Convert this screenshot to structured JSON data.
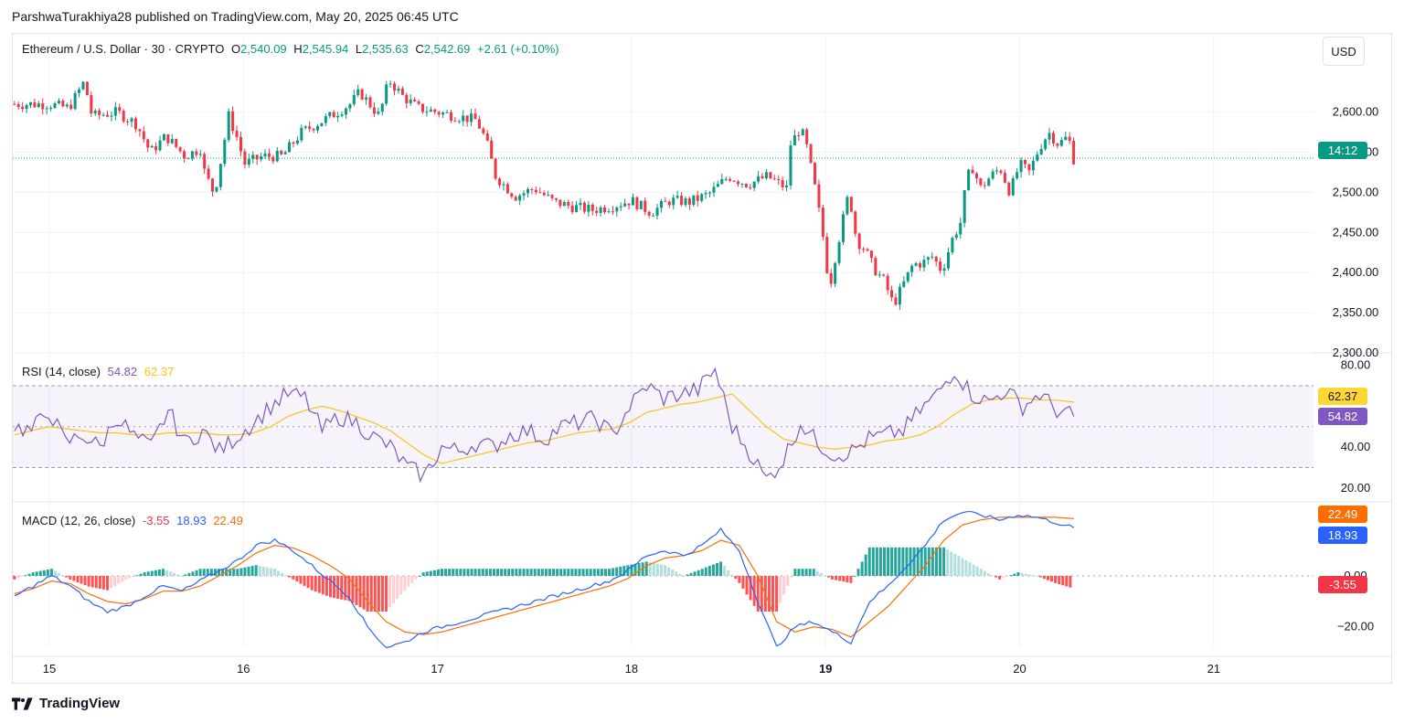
{
  "header": {
    "attribution": "ParshwaTurakhiya28 published on TradingView.com, May 20, 2025 06:45 UTC"
  },
  "legend": {
    "symbol": "Ethereum / U.S. Dollar · 30 · CRYPTO",
    "open_label": "O",
    "open": "2,540.09",
    "high_label": "H",
    "high": "2,545.94",
    "low_label": "L",
    "low": "2,535.63",
    "close_label": "C",
    "close": "2,542.69",
    "change": "+2.61 (+0.10%)",
    "rsi_title": "RSI (14, close)",
    "rsi_value": "54.82",
    "rsi_ma_value": "62.37",
    "macd_title": "MACD (12, 26, close)",
    "macd_hist_value": "-3.55",
    "macd_value": "18.93",
    "macd_signal_value": "22.49"
  },
  "currency": "USD",
  "badges": {
    "countdown": "14:12",
    "rsi_ma": "62.37",
    "rsi": "54.82",
    "macd_signal": "22.49",
    "macd": "18.93",
    "macd_hist": "-3.55"
  },
  "footer": {
    "brand": "TradingView"
  },
  "colors": {
    "up": "#089981",
    "down": "#f23645",
    "rsi": "#7e57c2",
    "rsi_ma": "#fdd835",
    "macd": "#2962ff",
    "signal": "#ff6d00",
    "grid": "#f0f3fa"
  },
  "chart_data": [
    {
      "type": "candlestick",
      "title": "Ethereum / U.S. Dollar · 30 · CRYPTO",
      "x_ticks": [
        "15",
        "16",
        "17",
        "18",
        "19",
        "20",
        "21"
      ],
      "y_ticks": [
        "2,600.00",
        "2,550.00",
        "2,500.00",
        "2,450.00",
        "2,400.00",
        "2,350.00",
        "2,300.00"
      ],
      "ylim": [
        2300,
        2660
      ],
      "last_price": 2542.69,
      "ohlc_path": [
        [
          0.0,
          2610
        ],
        [
          0.1,
          2605
        ],
        [
          0.18,
          2638
        ],
        [
          0.22,
          2595
        ],
        [
          0.35,
          2600
        ],
        [
          0.45,
          2585
        ],
        [
          0.52,
          2550
        ],
        [
          0.6,
          2570
        ],
        [
          0.7,
          2545
        ],
        [
          0.78,
          2555
        ],
        [
          0.8,
          2525
        ],
        [
          0.85,
          2498
        ],
        [
          0.9,
          2560
        ],
        [
          0.92,
          2598
        ],
        [
          0.98,
          2560
        ],
        [
          1.0,
          2535
        ],
        [
          1.1,
          2545
        ],
        [
          1.2,
          2545
        ],
        [
          1.3,
          2575
        ],
        [
          1.45,
          2595
        ],
        [
          1.55,
          2610
        ],
        [
          1.6,
          2625
        ],
        [
          1.7,
          2595
        ],
        [
          1.75,
          2640
        ],
        [
          1.82,
          2620
        ],
        [
          1.9,
          2605
        ],
        [
          2.0,
          2600
        ],
        [
          2.1,
          2595
        ],
        [
          2.2,
          2590
        ],
        [
          2.25,
          2565
        ],
        [
          2.3,
          2520
        ],
        [
          2.4,
          2495
        ],
        [
          2.5,
          2505
        ],
        [
          2.6,
          2488
        ],
        [
          2.7,
          2482
        ],
        [
          2.8,
          2478
        ],
        [
          2.9,
          2483
        ],
        [
          3.0,
          2490
        ],
        [
          3.1,
          2475
        ],
        [
          3.2,
          2490
        ],
        [
          3.3,
          2488
        ],
        [
          3.4,
          2498
        ],
        [
          3.5,
          2520
        ],
        [
          3.6,
          2510
        ],
        [
          3.7,
          2520
        ],
        [
          3.8,
          2505
        ],
        [
          3.82,
          2560
        ],
        [
          3.87,
          2580
        ],
        [
          3.9,
          2560
        ],
        [
          3.95,
          2500
        ],
        [
          3.99,
          2440
        ],
        [
          4.02,
          2380
        ],
        [
          4.05,
          2420
        ],
        [
          4.08,
          2455
        ],
        [
          4.12,
          2500
        ],
        [
          4.16,
          2440
        ],
        [
          4.2,
          2430
        ],
        [
          4.25,
          2405
        ],
        [
          4.3,
          2390
        ],
        [
          4.35,
          2360
        ],
        [
          4.4,
          2385
        ],
        [
          4.45,
          2410
        ],
        [
          4.5,
          2412
        ],
        [
          4.55,
          2420
        ],
        [
          4.6,
          2402
        ],
        [
          4.65,
          2440
        ],
        [
          4.7,
          2465
        ],
        [
          4.72,
          2505
        ],
        [
          4.75,
          2535
        ],
        [
          4.8,
          2505
        ],
        [
          4.85,
          2520
        ],
        [
          4.9,
          2530
        ],
        [
          4.95,
          2500
        ],
        [
          5.0,
          2535
        ],
        [
          5.05,
          2525
        ],
        [
          5.1,
          2555
        ],
        [
          5.15,
          2575
        ],
        [
          5.2,
          2560
        ],
        [
          5.25,
          2570
        ],
        [
          5.28,
          2540
        ]
      ]
    },
    {
      "type": "line",
      "title": "RSI (14, close)",
      "y_ticks": [
        "80.00",
        "40.00",
        "20.00"
      ],
      "ylim": [
        15,
        83
      ],
      "bands": [
        30,
        50,
        70
      ],
      "series": [
        {
          "name": "RSI",
          "values": [
            50,
            48,
            58,
            42,
            46,
            40,
            55,
            45,
            40,
            58,
            42,
            48,
            38,
            45,
            52,
            60,
            66,
            64,
            48,
            55,
            52,
            45,
            40,
            30,
            26,
            40,
            38,
            42,
            40,
            46,
            48,
            44,
            50,
            52,
            54,
            46,
            60,
            70,
            64,
            66,
            68,
            78,
            50,
            38,
            24,
            34,
            52,
            42,
            36,
            38,
            44,
            46,
            48,
            58,
            66,
            78,
            66,
            62,
            68,
            60,
            66,
            58,
            55
          ]
        },
        {
          "name": "RSI MA",
          "values": [
            46,
            48,
            50,
            49,
            48,
            47,
            47,
            46,
            46,
            47,
            47,
            47,
            46,
            46,
            47,
            50,
            55,
            58,
            60,
            58,
            55,
            52,
            48,
            42,
            36,
            32,
            34,
            36,
            38,
            40,
            42,
            43,
            45,
            47,
            48,
            49,
            52,
            57,
            59,
            61,
            62,
            64,
            66,
            58,
            50,
            44,
            42,
            40,
            39,
            40,
            41,
            43,
            44,
            46,
            50,
            56,
            61,
            63,
            64,
            64,
            63,
            63,
            62
          ]
        }
      ]
    },
    {
      "type": "bar+line",
      "title": "MACD (12, 26, close)",
      "y_ticks": [
        "0.00",
        "−20.00"
      ],
      "ylim": [
        -28,
        28
      ],
      "series": [
        {
          "name": "MACD",
          "values": [
            -8,
            -4,
            0,
            -4,
            -10,
            -14,
            -12,
            -8,
            -4,
            -6,
            -2,
            2,
            6,
            12,
            14,
            10,
            4,
            -2,
            -8,
            -20,
            -28,
            -26,
            -22,
            -20,
            -18,
            -16,
            -14,
            -12,
            -10,
            -8,
            -6,
            -4,
            -2,
            2,
            8,
            10,
            8,
            12,
            18,
            10,
            -10,
            -28,
            -20,
            -18,
            -22,
            -26,
            -10,
            -4,
            4,
            12,
            22,
            25,
            24,
            22,
            24,
            23,
            21,
            18.93
          ]
        },
        {
          "name": "Signal",
          "values": [
            -7,
            -5,
            -2,
            -3,
            -7,
            -10,
            -11,
            -9,
            -6,
            -6,
            -4,
            0,
            4,
            9,
            12,
            11,
            8,
            4,
            -1,
            -10,
            -18,
            -22,
            -23,
            -22,
            -20,
            -18,
            -16,
            -14,
            -12,
            -10,
            -8,
            -6,
            -4,
            -1,
            4,
            7,
            8,
            10,
            14,
            12,
            0,
            -18,
            -22,
            -20,
            -21,
            -24,
            -18,
            -12,
            -4,
            4,
            14,
            20,
            22,
            23,
            23,
            23,
            23,
            22.49
          ]
        }
      ],
      "histogram_last": -3.55
    }
  ]
}
